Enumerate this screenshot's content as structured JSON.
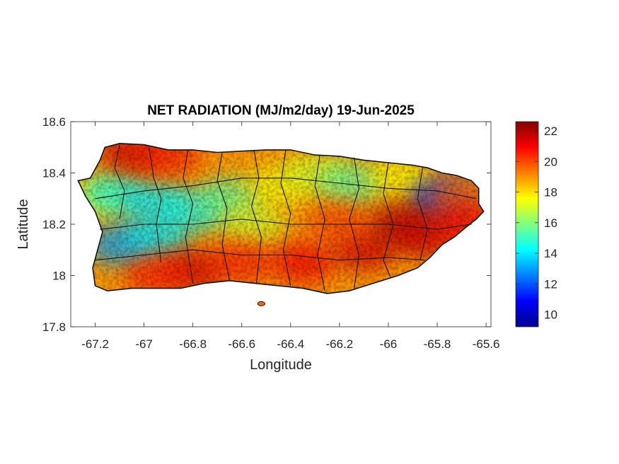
{
  "title": "NET RADIATION (MJ/m2/day) 19-Jun-2025",
  "xlabel": "Longitude",
  "ylabel": "Latitude",
  "x_ticks": [
    "-67.2",
    "-67",
    "-66.8",
    "-66.6",
    "-66.4",
    "-66.2",
    "-66",
    "-65.8",
    "-65.6"
  ],
  "y_ticks": [
    "18.6",
    "18.4",
    "18.2",
    "18",
    "17.8"
  ],
  "colorbar_ticks": [
    "22",
    "20",
    "18",
    "16",
    "14",
    "12",
    "10"
  ],
  "colormap": "jet",
  "colors": {
    "low": "#00008f",
    "mid": "#ffff00",
    "high": "#800000"
  },
  "chart_data": {
    "type": "heatmap",
    "title": "NET RADIATION (MJ/m2/day) 19-Jun-2025",
    "xlabel": "Longitude",
    "ylabel": "Latitude",
    "xlim": [
      -67.3,
      -65.58
    ],
    "ylim": [
      17.8,
      18.6
    ],
    "clim": [
      9.2,
      22.6
    ],
    "x_tick_values": [
      -67.2,
      -67,
      -66.8,
      -66.6,
      -66.4,
      -66.2,
      -66,
      -65.8,
      -65.6
    ],
    "y_tick_values": [
      18.6,
      18.4,
      18.2,
      18,
      17.8
    ],
    "colorbar_tick_values": [
      22,
      20,
      18,
      16,
      14,
      12,
      10
    ],
    "region_outline": [
      [
        -67.27,
        18.37
      ],
      [
        -67.22,
        18.38
      ],
      [
        -67.18,
        18.45
      ],
      [
        -67.16,
        18.5
      ],
      [
        -67.1,
        18.515
      ],
      [
        -67.0,
        18.51
      ],
      [
        -66.9,
        18.49
      ],
      [
        -66.8,
        18.49
      ],
      [
        -66.7,
        18.48
      ],
      [
        -66.6,
        18.485
      ],
      [
        -66.5,
        18.49
      ],
      [
        -66.4,
        18.49
      ],
      [
        -66.3,
        18.47
      ],
      [
        -66.2,
        18.465
      ],
      [
        -66.1,
        18.45
      ],
      [
        -66.0,
        18.44
      ],
      [
        -65.9,
        18.43
      ],
      [
        -65.84,
        18.42
      ],
      [
        -65.78,
        18.4
      ],
      [
        -65.72,
        18.39
      ],
      [
        -65.66,
        18.37
      ],
      [
        -65.63,
        18.34
      ],
      [
        -65.63,
        18.28
      ],
      [
        -65.61,
        18.25
      ],
      [
        -65.64,
        18.22
      ],
      [
        -65.68,
        18.19
      ],
      [
        -65.73,
        18.15
      ],
      [
        -65.78,
        18.12
      ],
      [
        -65.83,
        18.07
      ],
      [
        -65.88,
        18.03
      ],
      [
        -65.96,
        18.0
      ],
      [
        -66.06,
        17.97
      ],
      [
        -66.16,
        17.94
      ],
      [
        -66.25,
        17.93
      ],
      [
        -66.35,
        17.95
      ],
      [
        -66.45,
        17.96
      ],
      [
        -66.55,
        17.97
      ],
      [
        -66.65,
        17.98
      ],
      [
        -66.75,
        17.97
      ],
      [
        -66.85,
        17.95
      ],
      [
        -66.95,
        17.95
      ],
      [
        -67.05,
        17.95
      ],
      [
        -67.15,
        17.94
      ],
      [
        -67.2,
        17.96
      ],
      [
        -67.21,
        18.03
      ],
      [
        -67.19,
        18.1
      ],
      [
        -67.17,
        18.17
      ],
      [
        -67.2,
        18.25
      ],
      [
        -67.24,
        18.31
      ]
    ],
    "field_hotspots": [
      {
        "lon": -67.2,
        "lat": 18.3,
        "value": 17.5
      },
      {
        "lon": -67.12,
        "lat": 18.32,
        "value": 14.5
      },
      {
        "lon": -66.95,
        "lat": 18.28,
        "value": 14.0
      },
      {
        "lon": -66.8,
        "lat": 18.25,
        "value": 14.5
      },
      {
        "lon": -66.65,
        "lat": 18.3,
        "value": 15.5
      },
      {
        "lon": -66.55,
        "lat": 18.2,
        "value": 17.0
      },
      {
        "lon": -66.45,
        "lat": 18.35,
        "value": 17.5
      },
      {
        "lon": -66.3,
        "lat": 18.4,
        "value": 17.0
      },
      {
        "lon": -66.15,
        "lat": 18.36,
        "value": 15.5
      },
      {
        "lon": -65.95,
        "lat": 18.38,
        "value": 17.5
      },
      {
        "lon": -65.78,
        "lat": 18.3,
        "value": 11.5
      },
      {
        "lon": -65.7,
        "lat": 18.3,
        "value": 19.5
      },
      {
        "lon": -67.1,
        "lat": 18.12,
        "value": 13.0
      },
      {
        "lon": -66.95,
        "lat": 18.15,
        "value": 14.0
      },
      {
        "lon": -67.05,
        "lat": 18.48,
        "value": 21.5
      },
      {
        "lon": -66.9,
        "lat": 18.47,
        "value": 20.5
      },
      {
        "lon": -66.8,
        "lat": 18.02,
        "value": 21.5
      },
      {
        "lon": -66.95,
        "lat": 18.0,
        "value": 20.5
      },
      {
        "lon": -66.6,
        "lat": 18.05,
        "value": 20.5
      },
      {
        "lon": -66.35,
        "lat": 18.05,
        "value": 21.0
      },
      {
        "lon": -66.1,
        "lat": 18.1,
        "value": 21.5
      },
      {
        "lon": -65.95,
        "lat": 18.2,
        "value": 22.0
      },
      {
        "lon": -65.85,
        "lat": 18.15,
        "value": 21.5
      },
      {
        "lon": -66.2,
        "lat": 18.2,
        "value": 20.0
      },
      {
        "lon": -65.68,
        "lat": 18.2,
        "value": 21.0
      }
    ],
    "grid": false,
    "colorbar_location": "right"
  }
}
